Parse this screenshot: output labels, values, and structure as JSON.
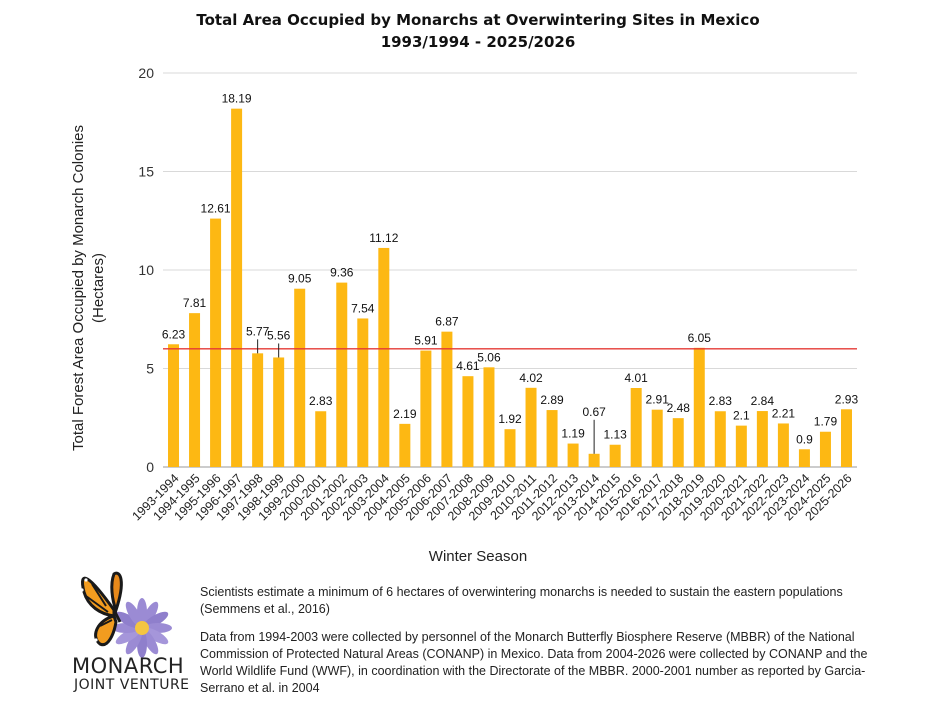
{
  "chart_data": {
    "type": "bar",
    "title": "Total Area Occupied by Monarchs at Overwintering Sites in Mexico",
    "subtitle": "1993/1994 - 2025/2026",
    "xlabel": "Winter Season",
    "ylabel_line1": "Total Forest Area Occupied by Monarch Colonies",
    "ylabel_line2": "(Hectares)",
    "ylim": [
      0,
      20
    ],
    "yticks": [
      "0",
      "5",
      "10",
      "15",
      "20"
    ],
    "grid": true,
    "reference_line": 6,
    "bar_color": "#FDB813",
    "reference_color": "#E53935",
    "categories": [
      "1993-1994",
      "1994-1995",
      "1995-1996",
      "1996-1997",
      "1997-1998",
      "1998-1999",
      "1999-2000",
      "2000-2001",
      "2001-2002",
      "2002-2003",
      "2003-2004",
      "2004-2005",
      "2005-2006",
      "2006-2007",
      "2007-2008",
      "2008-2009",
      "2009-2010",
      "2010-2011",
      "2011-2012",
      "2012-2013",
      "2013-2014",
      "2014-2015",
      "2015-2016",
      "2016-2017",
      "2017-2018",
      "2018-2019",
      "2019-2020",
      "2020-2021",
      "2021-2022",
      "2022-2023",
      "2023-2024",
      "2024-2025",
      "2025-2026"
    ],
    "values": [
      6.23,
      7.81,
      12.61,
      18.19,
      5.77,
      5.56,
      9.05,
      2.83,
      9.36,
      7.54,
      11.12,
      2.19,
      5.91,
      6.87,
      4.61,
      5.06,
      1.92,
      4.02,
      2.89,
      1.19,
      0.67,
      1.13,
      4.01,
      2.91,
      2.48,
      6.05,
      2.83,
      2.1,
      2.84,
      2.21,
      0.9,
      1.79,
      2.93
    ],
    "value_labels": [
      "6.23",
      "7.81",
      "12.61",
      "18.19",
      "5.77",
      "5.56",
      "9.05",
      "2.83",
      "9.36",
      "7.54",
      "11.12",
      "2.19",
      "5.91",
      "6.87",
      "4.61",
      "5.06",
      "1.92",
      "4.02",
      "2.89",
      "1.19",
      "0.67",
      "1.13",
      "4.01",
      "2.91",
      "2.48",
      "6.05",
      "2.83",
      "2.1",
      "2.84",
      "2.21",
      "0.9",
      "1.79",
      "2.93"
    ]
  },
  "footer": {
    "note": "Scientists estimate a minimum of 6 hectares of overwintering monarchs is needed to sustain the eastern populations (Semmens et al., 2016)",
    "source": "Data from 1994-2003 were collected by personnel of the Monarch Butterfly Biosphere Reserve (MBBR) of the National Commission of Protected Natural Areas (CONANP) in Mexico. Data from 2004-2026 were collected by CONANP and the World Wildlife Fund (WWF), in coordination with the Directorate of the MBBR. 2000-2001 number as reported by Garcia-Serrano et al. in 2004"
  },
  "logo": {
    "line1": "MONARCH",
    "line2": "JOINT VENTURE",
    "wing_color": "#F29C1F",
    "flower_color": "#9B8BD4"
  }
}
